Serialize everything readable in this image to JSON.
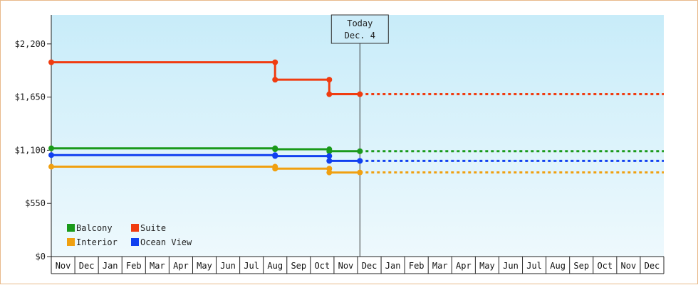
{
  "chart_data": {
    "type": "line",
    "step": true,
    "ylim": [
      0,
      2500
    ],
    "yticks": [
      0,
      550,
      1100,
      1650,
      2200
    ],
    "ytick_labels": [
      "$0",
      "$550",
      "$1,100",
      "$1,650",
      "$2,200"
    ],
    "months": [
      "Nov",
      "Dec",
      "Jan",
      "Feb",
      "Mar",
      "Apr",
      "May",
      "Jun",
      "Jul",
      "Aug",
      "Sep",
      "Oct",
      "Nov",
      "Dec",
      "Jan",
      "Feb",
      "Mar",
      "Apr",
      "May",
      "Jun",
      "Jul",
      "Aug",
      "Sep",
      "Oct",
      "Nov",
      "Dec"
    ],
    "today": {
      "line1": "Today",
      "line2": "Dec. 4",
      "month_index": 13.1
    },
    "grid": false,
    "legend_position": "bottom-left",
    "series": [
      {
        "name": "Balcony",
        "color": "#1a9a1a",
        "points": [
          [
            0,
            1120
          ],
          [
            9.5,
            1120
          ],
          [
            9.5,
            1110
          ],
          [
            11.8,
            1110
          ],
          [
            11.8,
            1090
          ],
          [
            13.1,
            1090
          ]
        ],
        "projection": 1090
      },
      {
        "name": "Suite",
        "color": "#f03c10",
        "points": [
          [
            0,
            2010
          ],
          [
            9.5,
            2010
          ],
          [
            9.5,
            1830
          ],
          [
            11.8,
            1830
          ],
          [
            11.8,
            1680
          ],
          [
            13.1,
            1680
          ]
        ],
        "projection": 1680
      },
      {
        "name": "Interior",
        "color": "#f0a010",
        "points": [
          [
            0,
            930
          ],
          [
            9.5,
            930
          ],
          [
            9.5,
            910
          ],
          [
            11.8,
            910
          ],
          [
            11.8,
            870
          ],
          [
            13.1,
            870
          ]
        ],
        "projection": 870
      },
      {
        "name": "Ocean View",
        "color": "#1040f0",
        "points": [
          [
            0,
            1050
          ],
          [
            9.5,
            1050
          ],
          [
            9.5,
            1040
          ],
          [
            11.8,
            1040
          ],
          [
            11.8,
            990
          ],
          [
            13.1,
            990
          ]
        ],
        "projection": 990
      }
    ]
  }
}
